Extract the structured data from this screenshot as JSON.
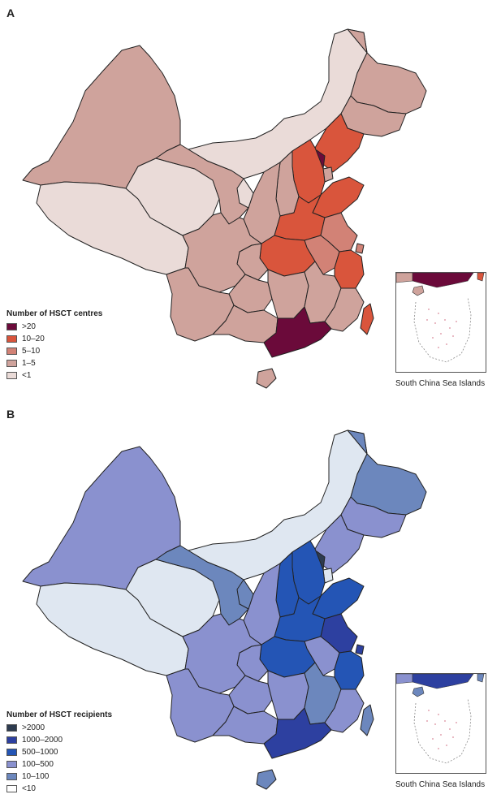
{
  "panels": [
    {
      "label": "A",
      "legend_title": "Number of HSCT centres",
      "legend": [
        {
          "label": ">20",
          "color": "#6b0a3a"
        },
        {
          "label": "10–20",
          "color": "#d9553c"
        },
        {
          "label": "5–10",
          "color": "#d28276"
        },
        {
          "label": "1–5",
          "color": "#cfa39c"
        },
        {
          "label": "<1",
          "color": "#eadbd8"
        }
      ],
      "inset_caption": "South China Sea Islands"
    },
    {
      "label": "B",
      "legend_title": "Number of HSCT recipients",
      "legend": [
        {
          "label": ">2000",
          "color": "#2d3b4f"
        },
        {
          "label": "1000–2000",
          "color": "#2d40a0"
        },
        {
          "label": "500–1000",
          "color": "#2455b5"
        },
        {
          "label": "100–500",
          "color": "#8a91cf"
        },
        {
          "label": "10–100",
          "color": "#6c87bd"
        },
        {
          "label": "<10",
          "color": "#ffffff"
        }
      ],
      "inset_caption": "South China Sea Islands"
    }
  ],
  "map_fills": {
    "A": {
      "xinjiang": "#cfa39c",
      "tibet": "#eadbd8",
      "qinghai": "#eadbd8",
      "gansu": "#cfa39c",
      "inner_mongolia": "#eadbd8",
      "heilongjiang": "#cfa39c",
      "jilin": "#cfa39c",
      "liaoning": "#d9553c",
      "beijing": "#6b0a3a",
      "tianjin": "#cfa39c",
      "hebei": "#d9553c",
      "shandong": "#d9553c",
      "shanxi": "#cfa39c",
      "shaanxi": "#cfa39c",
      "ningxia": "#eadbd8",
      "henan": "#d9553c",
      "jiangsu": "#d28276",
      "anhui": "#d28276",
      "shanghai": "#d28276",
      "zhejiang": "#d9553c",
      "hubei": "#d9553c",
      "sichuan": "#cfa39c",
      "chongqing": "#cfa39c",
      "hunan": "#cfa39c",
      "jiangxi": "#cfa39c",
      "fujian": "#cfa39c",
      "guizhou": "#cfa39c",
      "yunnan": "#cfa39c",
      "guangxi": "#cfa39c",
      "guangdong": "#6b0a3a",
      "hainan": "#cfa39c",
      "taiwan": "#d9553c"
    },
    "B": {
      "xinjiang": "#8a91cf",
      "tibet": "#dfe7f1",
      "qinghai": "#dfe7f1",
      "gansu": "#6c87bd",
      "inner_mongolia": "#dfe7f1",
      "heilongjiang": "#6c87bd",
      "jilin": "#8a91cf",
      "liaoning": "#8a91cf",
      "beijing": "#2d3b4f",
      "tianjin": "#dfe7f1",
      "hebei": "#2455b5",
      "shandong": "#2455b5",
      "shanxi": "#2455b5",
      "shaanxi": "#8a91cf",
      "ningxia": "#6c87bd",
      "henan": "#2455b5",
      "jiangsu": "#2d40a0",
      "anhui": "#8a91cf",
      "shanghai": "#2d40a0",
      "zhejiang": "#2455b5",
      "hubei": "#2455b5",
      "sichuan": "#8a91cf",
      "chongqing": "#8a91cf",
      "hunan": "#8a91cf",
      "jiangxi": "#6c87bd",
      "fujian": "#8a91cf",
      "guizhou": "#8a91cf",
      "yunnan": "#8a91cf",
      "guangxi": "#8a91cf",
      "guangdong": "#2d40a0",
      "hainan": "#6c87bd",
      "taiwan": "#6c87bd"
    }
  }
}
